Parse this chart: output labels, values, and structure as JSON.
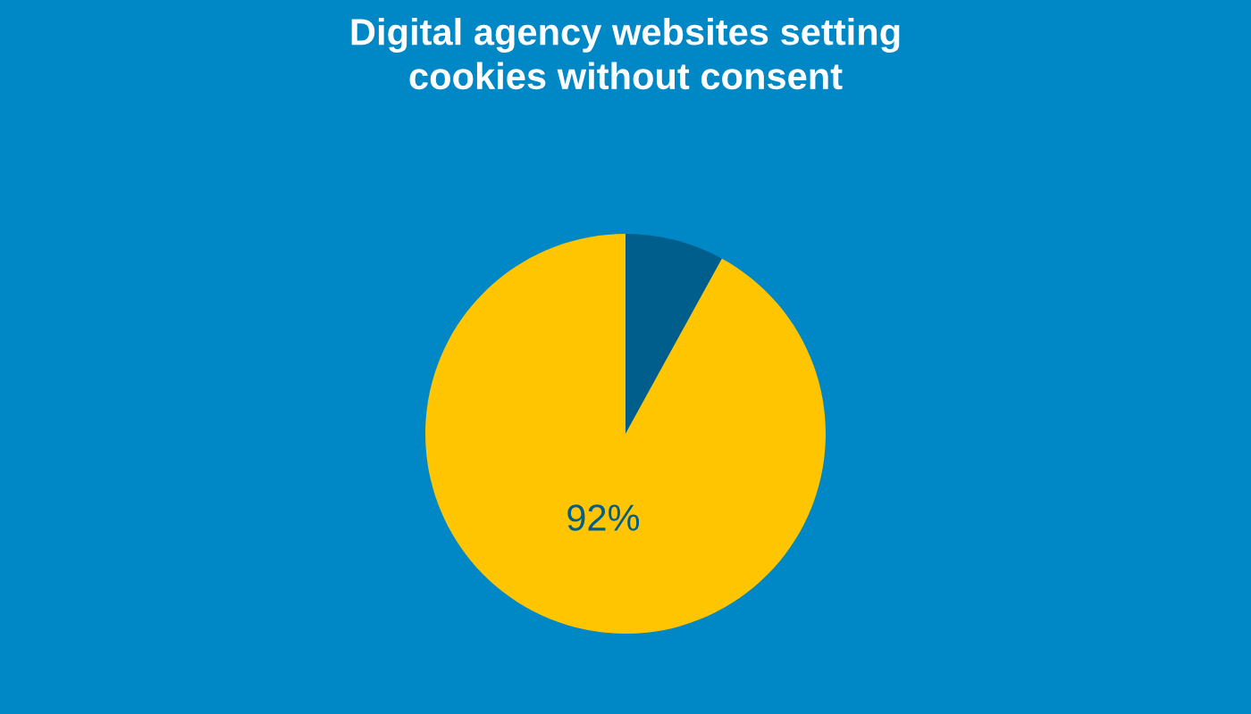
{
  "chart_data": {
    "type": "pie",
    "title": "Digital agency websites setting\ncookies without consent",
    "categories": [
      null,
      null
    ],
    "values": [
      8,
      92
    ],
    "colors": [
      "#005e8c",
      "#ffc500"
    ],
    "value_labels": [
      null,
      "92%"
    ]
  }
}
